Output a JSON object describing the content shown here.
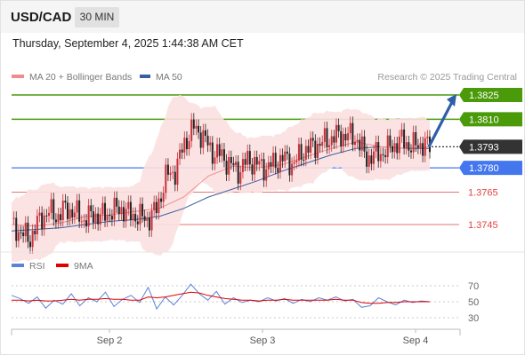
{
  "header": {
    "symbol": "USD/CAD",
    "timeframe": "30 MIN"
  },
  "timestamp": "Thursday, September 4, 2025 1:44:38 AM CET",
  "legend": {
    "ma20": {
      "label": "MA 20 + Bollinger Bands",
      "color": "#f28b8b"
    },
    "ma50": {
      "label": "MA 50",
      "color": "#3a5f9f"
    },
    "rsi": {
      "label": "RSI",
      "color": "#5b83d8"
    },
    "rsi_ma": {
      "label": "9MA",
      "color": "#e00000"
    }
  },
  "credit": "Research © 2025 Trading Central",
  "colors": {
    "resistance": "#4a9a0a",
    "pivot": "#4477ee",
    "support": "#e04444",
    "current": "#333333",
    "up_candle": "#c8303a",
    "down_candle": "#222222",
    "band_fill": "#fbe0e0",
    "arrow": "#2f5ea8"
  },
  "chart_data": [
    {
      "type": "candlestick",
      "title": "USD/CAD",
      "timeframe": "30 MIN",
      "x_ticks": [
        "Sep 2",
        "Sep 3",
        "Sep 4"
      ],
      "ylim": [
        1.3733,
        1.3837
      ],
      "levels": [
        {
          "value": 1.3825,
          "label": "1.3825",
          "kind": "resistance"
        },
        {
          "value": 1.381,
          "label": "1.3810",
          "kind": "resistance"
        },
        {
          "value": 1.3793,
          "label": "1.3793",
          "kind": "current"
        },
        {
          "value": 1.378,
          "label": "1.3780",
          "kind": "pivot"
        },
        {
          "value": 1.3765,
          "label": "1.3765",
          "kind": "support"
        },
        {
          "value": 1.3745,
          "label": "1.3745",
          "kind": "support"
        }
      ],
      "price_points": [
        1.3745,
        1.374,
        1.3736,
        1.3747,
        1.3753,
        1.375,
        1.3755,
        1.3752,
        1.3748,
        1.3751,
        1.375,
        1.3753,
        1.3755,
        1.3751,
        1.375,
        1.3748,
        1.3755,
        1.3775,
        1.3778,
        1.3795,
        1.3805,
        1.38,
        1.379,
        1.3788,
        1.3782,
        1.3778,
        1.3785,
        1.3782,
        1.378,
        1.3783,
        1.3786,
        1.3782,
        1.379,
        1.3793,
        1.3795,
        1.3798,
        1.38,
        1.38,
        1.3798,
        1.3786,
        1.3788,
        1.379,
        1.3794,
        1.3797,
        1.3793,
        1.3795,
        1.3793
      ],
      "ma50": [
        1.3741,
        1.3742,
        1.3743,
        1.3745,
        1.3747,
        1.3748,
        1.375,
        1.3755,
        1.3762,
        1.3767,
        1.3772,
        1.3778,
        1.3783,
        1.3788,
        1.3792,
        1.3793,
        1.3792,
        1.3792
      ],
      "ma20": [
        1.3745,
        1.3744,
        1.3746,
        1.375,
        1.3751,
        1.3753,
        1.3755,
        1.3762,
        1.3775,
        1.3781,
        1.378,
        1.3782,
        1.3787,
        1.3792,
        1.3796,
        1.3793,
        1.3792,
        1.3793
      ],
      "projection": [
        1.3793,
        1.3825
      ]
    },
    {
      "type": "line",
      "title": "RSI",
      "y_ticks": [
        70,
        50,
        30
      ],
      "ylim": [
        25,
        75
      ],
      "series": [
        {
          "name": "RSI",
          "values": [
            58,
            54,
            48,
            56,
            42,
            52,
            47,
            60,
            45,
            55,
            50,
            62,
            44,
            53,
            58,
            49,
            68,
            41,
            56,
            46,
            58,
            72,
            60,
            52,
            63,
            47,
            55,
            49,
            52,
            50,
            55,
            51,
            54,
            48,
            53,
            50,
            55,
            52,
            56,
            51,
            53,
            43,
            45,
            55,
            50,
            46,
            52,
            49,
            51,
            50
          ]
        },
        {
          "name": "9MA",
          "values": [
            52,
            52,
            51,
            52,
            51,
            51,
            52,
            53,
            52,
            53,
            53,
            54,
            53,
            53,
            52,
            52,
            56,
            55,
            56,
            58,
            60,
            62,
            61,
            58,
            56,
            54,
            53,
            52,
            52,
            51,
            52,
            52,
            53,
            52,
            52,
            52,
            52,
            52,
            53,
            52,
            52,
            49,
            48,
            48,
            49,
            49,
            50,
            50,
            50,
            50
          ]
        }
      ]
    }
  ]
}
